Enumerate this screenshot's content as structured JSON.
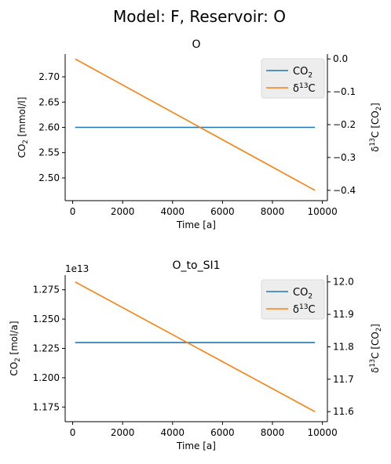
{
  "figure": {
    "suptitle": "Model: F, Reservoir: O"
  },
  "chart_data": [
    {
      "type": "line",
      "title": "O",
      "xlabel": "Time [a]",
      "ylabel_left": "CO2 [mmol/l]",
      "ylabel_right": "δ13C [CO2]",
      "xlim": [
        -300,
        10200
      ],
      "ylim_left": [
        2.455,
        2.745
      ],
      "ylim_right": [
        -0.4315,
        0.0148
      ],
      "xticks": [
        0,
        2000,
        4000,
        6000,
        8000,
        10000
      ],
      "yticks_left": [
        2.5,
        2.55,
        2.6,
        2.65,
        2.7
      ],
      "yticks_right": [
        -0.4,
        -0.3,
        -0.2,
        -0.1,
        0.0
      ],
      "ytick_labels_left": [
        "2.50",
        "2.55",
        "2.60",
        "2.65",
        "2.70"
      ],
      "ytick_labels_right": [
        "−0.4",
        "−0.3",
        "−0.2",
        "−0.1",
        "0.0"
      ],
      "offset_text": "",
      "legend_position": "top-right",
      "grid": false,
      "series": [
        {
          "name": "CO2",
          "axis": "left",
          "color": "#1f77b4",
          "x": [
            100,
            9700
          ],
          "y": [
            2.6,
            2.6
          ]
        },
        {
          "name": "δ13C",
          "axis": "right",
          "color": "#ff7f0e",
          "x": [
            100,
            9700
          ],
          "y": [
            0.0,
            -0.4
          ]
        }
      ]
    },
    {
      "type": "line",
      "title": "O_to_SI1",
      "xlabel": "Time [a]",
      "ylabel_left": "CO2 [mol/a]",
      "ylabel_right": "δ13C [CO2]",
      "xlim": [
        -300,
        10200
      ],
      "ylim_left": [
        1.1625,
        1.2875
      ],
      "ylim_right": [
        11.569,
        12.021
      ],
      "xticks": [
        0,
        2000,
        4000,
        6000,
        8000,
        10000
      ],
      "yticks_left": [
        1.175,
        1.2,
        1.225,
        1.25,
        1.275
      ],
      "yticks_right": [
        11.6,
        11.7,
        11.8,
        11.9,
        12.0
      ],
      "ytick_labels_left": [
        "1.175",
        "1.200",
        "1.225",
        "1.250",
        "1.275"
      ],
      "ytick_labels_right": [
        "11.6",
        "11.7",
        "11.8",
        "11.9",
        "12.0"
      ],
      "offset_text": "1e13",
      "legend_position": "top-right",
      "grid": false,
      "series": [
        {
          "name": "CO2",
          "axis": "left",
          "color": "#1f77b4",
          "x": [
            100,
            9700
          ],
          "y": [
            1.23,
            1.23
          ]
        },
        {
          "name": "δ13C",
          "axis": "right",
          "color": "#ff7f0e",
          "x": [
            100,
            9700
          ],
          "y": [
            12.0,
            11.6
          ]
        }
      ]
    }
  ]
}
